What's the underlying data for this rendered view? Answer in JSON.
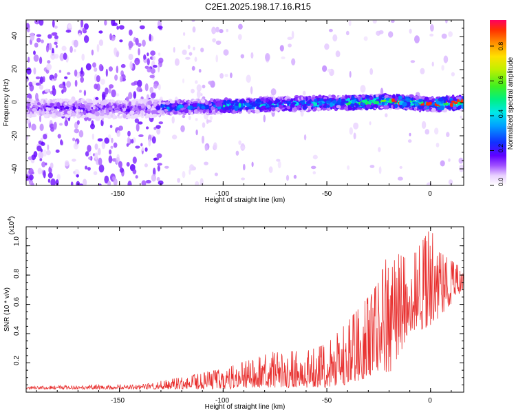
{
  "title": "C2E1.2025.198.17.16.R15",
  "spectrogram": {
    "ylabel": "Frequency (Hz)",
    "xlabel": "Height of straight line (km)",
    "xticks": [
      "-150",
      "-100",
      "-50",
      "0"
    ],
    "yticks": [
      "40",
      "20",
      "0",
      "-20",
      "-40"
    ],
    "colorbar_label": "Normalized spectral amplitude",
    "colorbar_ticks": [
      "0.0",
      "0.2",
      "0.4",
      "0.6",
      "0.8"
    ]
  },
  "snr": {
    "ylabel": "SNR (10 * v/v)",
    "xlabel": "Height of straight line (km)",
    "scale_prefix": "(x10",
    "scale_exp": "4",
    "scale_suffix": ")",
    "xticks": [
      "-150",
      "-100",
      "-50",
      "0"
    ],
    "yticks": [
      "1.0",
      "0.8",
      "0.6",
      "0.4",
      "0.2"
    ]
  },
  "colors": {
    "snr_line": "#e8302f",
    "axis": "#000000"
  },
  "chart_data": [
    {
      "type": "heatmap",
      "title": "C2E1.2025.198.17.16.R15",
      "xlabel": "Height of straight line (km)",
      "ylabel": "Frequency (Hz)",
      "xlim": [
        -195,
        16
      ],
      "ylim": [
        -50,
        50
      ],
      "colorbar": {
        "label": "Normalized spectral amplitude",
        "range": [
          0,
          0.95
        ],
        "colormap": "rainbow"
      },
      "ridge": {
        "x": [
          -195,
          -150,
          -130,
          -100,
          -75,
          -50,
          -35,
          -20,
          -10,
          0,
          16
        ],
        "frequency": [
          -3,
          -4,
          -3,
          -2,
          -1,
          0,
          0,
          1,
          0,
          -1,
          0
        ]
      }
    },
    {
      "type": "line",
      "xlabel": "Height of straight line (km)",
      "ylabel": "SNR (10 * v/v)",
      "y_scale_factor": 10000,
      "xlim": [
        -195,
        16
      ],
      "ylim": [
        0,
        1.13
      ],
      "envelope": {
        "x": [
          -195,
          -160,
          -140,
          -125,
          -110,
          -100,
          -85,
          -75,
          -60,
          -50,
          -40,
          -30,
          -25,
          -20,
          -10,
          0,
          5,
          10,
          16
        ],
        "y_min": [
          0.02,
          0.02,
          0.02,
          0.02,
          0.02,
          0.02,
          0.03,
          0.03,
          0.03,
          0.03,
          0.05,
          0.1,
          0.15,
          0.1,
          0.4,
          0.45,
          0.5,
          0.6,
          0.7
        ],
        "y_max": [
          0.04,
          0.05,
          0.05,
          0.09,
          0.13,
          0.16,
          0.23,
          0.28,
          0.28,
          0.33,
          0.48,
          0.65,
          0.75,
          0.98,
          0.9,
          1.12,
          0.95,
          0.9,
          0.84
        ]
      }
    }
  ]
}
